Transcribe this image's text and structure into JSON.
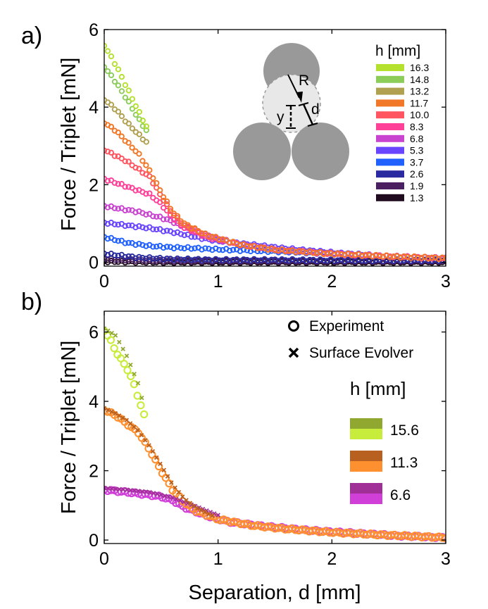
{
  "figure": {
    "xlabel": "Separation, d [mm]"
  },
  "chart_data": [
    {
      "panel_label": "a)",
      "type": "scatter",
      "xlabel": "",
      "ylabel": "Force / Triplet [mN]",
      "xlim": [
        0,
        3
      ],
      "ylim": [
        -0.1,
        6
      ],
      "xticks": [
        0,
        1,
        2,
        3
      ],
      "yticks": [
        0,
        2,
        4,
        6
      ],
      "legend_title": "h [mm]",
      "legend_position": "top-right",
      "grid": false,
      "inset": {
        "label_R": "R",
        "label_y": "y",
        "label_d": "d"
      },
      "series": [
        {
          "name": "16.3",
          "color": "#b4e02e",
          "marker": "circle",
          "x_end": 0.37,
          "points": [
            [
              0.0,
              5.6
            ],
            [
              0.1,
              5.1
            ],
            [
              0.2,
              4.5
            ],
            [
              0.3,
              3.9
            ],
            [
              0.37,
              3.5
            ],
            [
              0.5,
              2.1
            ],
            [
              0.7,
              1.2
            ],
            [
              0.9,
              0.8
            ],
            [
              1.2,
              0.5
            ],
            [
              1.5,
              0.3
            ],
            [
              2.0,
              0.2
            ],
            [
              2.5,
              0.15
            ],
            [
              3.0,
              0.1
            ]
          ]
        },
        {
          "name": "14.8",
          "color": "#8ccd5a",
          "marker": "circle",
          "x_end": 0.37,
          "points": [
            [
              0.0,
              5.05
            ],
            [
              0.1,
              4.65
            ],
            [
              0.2,
              4.2
            ],
            [
              0.3,
              3.7
            ],
            [
              0.37,
              3.4
            ],
            [
              0.5,
              2.1
            ],
            [
              0.7,
              1.2
            ],
            [
              0.9,
              0.8
            ],
            [
              1.2,
              0.5
            ],
            [
              1.5,
              0.3
            ],
            [
              2.0,
              0.2
            ],
            [
              2.5,
              0.15
            ],
            [
              3.0,
              0.1
            ]
          ]
        },
        {
          "name": "13.2",
          "color": "#b0a050",
          "marker": "circle",
          "x_end": 0.37,
          "points": [
            [
              0.0,
              4.2
            ],
            [
              0.1,
              3.95
            ],
            [
              0.2,
              3.6
            ],
            [
              0.3,
              3.3
            ],
            [
              0.37,
              3.1
            ],
            [
              0.5,
              2.2
            ],
            [
              0.7,
              1.2
            ],
            [
              0.9,
              0.8
            ],
            [
              1.2,
              0.5
            ],
            [
              1.5,
              0.3
            ],
            [
              2.0,
              0.2
            ],
            [
              2.5,
              0.15
            ],
            [
              3.0,
              0.1
            ]
          ]
        },
        {
          "name": "11.7",
          "color": "#f07828",
          "marker": "circle",
          "x_end": 3.0,
          "points": [
            [
              0.0,
              3.6
            ],
            [
              0.1,
              3.4
            ],
            [
              0.2,
              3.1
            ],
            [
              0.3,
              2.8
            ],
            [
              0.4,
              2.35
            ],
            [
              0.5,
              1.8
            ],
            [
              0.6,
              1.3
            ],
            [
              0.7,
              1.0
            ],
            [
              0.9,
              0.7
            ],
            [
              1.2,
              0.45
            ],
            [
              1.5,
              0.32
            ],
            [
              2.0,
              0.22
            ],
            [
              2.5,
              0.15
            ],
            [
              3.0,
              0.1
            ]
          ]
        },
        {
          "name": "10.0",
          "color": "#ff5560",
          "marker": "circle",
          "x_end": 3.0,
          "points": [
            [
              0.0,
              2.9
            ],
            [
              0.1,
              2.75
            ],
            [
              0.2,
              2.6
            ],
            [
              0.3,
              2.4
            ],
            [
              0.4,
              2.2
            ],
            [
              0.5,
              1.7
            ],
            [
              0.6,
              1.25
            ],
            [
              0.7,
              0.95
            ],
            [
              0.9,
              0.7
            ],
            [
              1.2,
              0.45
            ],
            [
              1.5,
              0.32
            ],
            [
              2.0,
              0.22
            ],
            [
              2.5,
              0.15
            ],
            [
              3.0,
              0.1
            ]
          ]
        },
        {
          "name": "8.3",
          "color": "#ff4098",
          "marker": "circle",
          "x_end": 3.0,
          "points": [
            [
              0.0,
              2.15
            ],
            [
              0.1,
              2.05
            ],
            [
              0.2,
              1.95
            ],
            [
              0.3,
              1.85
            ],
            [
              0.4,
              1.75
            ],
            [
              0.5,
              1.5
            ],
            [
              0.6,
              1.15
            ],
            [
              0.7,
              0.9
            ],
            [
              0.9,
              0.65
            ],
            [
              1.2,
              0.45
            ],
            [
              1.5,
              0.32
            ],
            [
              2.0,
              0.22
            ],
            [
              2.5,
              0.15
            ],
            [
              3.0,
              0.1
            ]
          ]
        },
        {
          "name": "6.8",
          "color": "#c844d0",
          "marker": "circle",
          "x_end": 3.0,
          "points": [
            [
              0.0,
              1.45
            ],
            [
              0.1,
              1.4
            ],
            [
              0.2,
              1.35
            ],
            [
              0.3,
              1.3
            ],
            [
              0.4,
              1.22
            ],
            [
              0.5,
              1.15
            ],
            [
              0.6,
              1.05
            ],
            [
              0.7,
              0.9
            ],
            [
              0.9,
              0.7
            ],
            [
              1.2,
              0.45
            ],
            [
              1.5,
              0.32
            ],
            [
              2.0,
              0.22
            ],
            [
              2.5,
              0.15
            ],
            [
              3.0,
              0.1
            ]
          ]
        },
        {
          "name": "5.3",
          "color": "#6a45ff",
          "marker": "circle",
          "x_end": 3.0,
          "points": [
            [
              0.0,
              1.02
            ],
            [
              0.2,
              0.95
            ],
            [
              0.4,
              0.88
            ],
            [
              0.6,
              0.78
            ],
            [
              0.8,
              0.65
            ],
            [
              1.0,
              0.55
            ],
            [
              1.3,
              0.45
            ],
            [
              1.6,
              0.35
            ],
            [
              2.0,
              0.25
            ],
            [
              2.5,
              0.15
            ],
            [
              3.0,
              0.1
            ]
          ]
        },
        {
          "name": "3.7",
          "color": "#2060ff",
          "marker": "circle",
          "x_end": 3.0,
          "points": [
            [
              0.0,
              0.65
            ],
            [
              0.2,
              0.5
            ],
            [
              0.4,
              0.42
            ],
            [
              0.6,
              0.38
            ],
            [
              0.8,
              0.36
            ],
            [
              1.0,
              0.33
            ],
            [
              1.3,
              0.3
            ],
            [
              1.6,
              0.27
            ],
            [
              2.0,
              0.22
            ],
            [
              2.5,
              0.15
            ],
            [
              3.0,
              0.1
            ]
          ]
        },
        {
          "name": "2.6",
          "color": "#2a2aa0",
          "marker": "circle",
          "x_end": 3.0,
          "points": [
            [
              0.0,
              0.22
            ],
            [
              0.3,
              0.12
            ],
            [
              0.6,
              0.08
            ],
            [
              1.0,
              0.06
            ],
            [
              1.5,
              0.06
            ],
            [
              2.0,
              0.05
            ],
            [
              2.5,
              0.05
            ],
            [
              3.0,
              0.05
            ]
          ]
        },
        {
          "name": "1.9",
          "color": "#4a2060",
          "marker": "circle",
          "x_end": 3.0,
          "points": [
            [
              0.0,
              0.08
            ],
            [
              0.5,
              0.04
            ],
            [
              1.0,
              0.03
            ],
            [
              1.5,
              0.03
            ],
            [
              2.0,
              0.03
            ],
            [
              2.5,
              0.03
            ],
            [
              3.0,
              0.03
            ]
          ]
        },
        {
          "name": "1.3",
          "color": "#200a20",
          "marker": "circle",
          "x_end": 3.0,
          "points": [
            [
              0.0,
              0.02
            ],
            [
              0.5,
              0.0
            ],
            [
              1.0,
              0.0
            ],
            [
              1.5,
              0.0
            ],
            [
              2.0,
              0.0
            ],
            [
              2.5,
              0.0
            ],
            [
              3.0,
              0.0
            ]
          ]
        }
      ]
    },
    {
      "panel_label": "b)",
      "type": "scatter",
      "xlabel": "Separation, d [mm]",
      "ylabel": "Force / Triplet [mN]",
      "xlim": [
        0,
        3
      ],
      "ylim": [
        -0.1,
        6.6
      ],
      "xticks": [
        0,
        1,
        2,
        3
      ],
      "yticks": [
        0,
        2,
        4,
        6
      ],
      "marker_legend": [
        {
          "label": "Experiment",
          "marker": "circle"
        },
        {
          "label": "Surface Evolver",
          "marker": "cross"
        }
      ],
      "legend_title": "h [mm]",
      "legend_position": "top-right",
      "grid": false,
      "series": [
        {
          "name": "15.6",
          "color_experiment": "#c8ec3c",
          "color_model": "#90a830",
          "experiment_end": 0.35,
          "model_end": 0.33,
          "experiment": [
            [
              0.0,
              6.05
            ],
            [
              0.05,
              5.8
            ],
            [
              0.1,
              5.45
            ],
            [
              0.15,
              5.2
            ],
            [
              0.2,
              4.95
            ],
            [
              0.25,
              4.6
            ],
            [
              0.3,
              4.1
            ],
            [
              0.35,
              3.6
            ],
            [
              0.4,
              2.9
            ],
            [
              0.5,
              2.0
            ],
            [
              0.6,
              1.35
            ],
            [
              0.7,
              1.0
            ],
            [
              0.9,
              0.7
            ],
            [
              1.2,
              0.5
            ],
            [
              1.5,
              0.35
            ],
            [
              2.0,
              0.22
            ],
            [
              2.5,
              0.15
            ],
            [
              3.0,
              0.08
            ]
          ],
          "model": [
            [
              0.0,
              6.1
            ],
            [
              0.1,
              5.9
            ],
            [
              0.15,
              5.6
            ],
            [
              0.2,
              5.3
            ],
            [
              0.25,
              4.9
            ],
            [
              0.3,
              4.5
            ],
            [
              0.33,
              4.1
            ]
          ]
        },
        {
          "name": "11.3",
          "color_experiment": "#ff9030",
          "color_model": "#b86020",
          "experiment_end": 3.0,
          "model_end": 0.95,
          "experiment": [
            [
              0.0,
              3.75
            ],
            [
              0.1,
              3.6
            ],
            [
              0.2,
              3.35
            ],
            [
              0.3,
              3.1
            ],
            [
              0.4,
              2.6
            ],
            [
              0.5,
              2.0
            ],
            [
              0.6,
              1.45
            ],
            [
              0.7,
              1.1
            ],
            [
              0.8,
              0.85
            ],
            [
              1.0,
              0.6
            ],
            [
              1.3,
              0.42
            ],
            [
              1.6,
              0.32
            ],
            [
              2.0,
              0.22
            ],
            [
              2.5,
              0.14
            ],
            [
              3.0,
              0.07
            ]
          ],
          "model": [
            [
              0.0,
              3.8
            ],
            [
              0.1,
              3.65
            ],
            [
              0.2,
              3.45
            ],
            [
              0.3,
              3.15
            ],
            [
              0.4,
              2.7
            ],
            [
              0.5,
              2.15
            ],
            [
              0.6,
              1.6
            ],
            [
              0.7,
              1.2
            ],
            [
              0.8,
              0.95
            ],
            [
              0.95,
              0.7
            ]
          ]
        },
        {
          "name": "6.6",
          "color_experiment": "#d040d8",
          "color_model": "#a03098",
          "experiment_end": 3.0,
          "model_end": 1.0,
          "experiment": [
            [
              0.0,
              1.45
            ],
            [
              0.2,
              1.38
            ],
            [
              0.4,
              1.3
            ],
            [
              0.5,
              1.25
            ],
            [
              0.6,
              1.15
            ],
            [
              0.7,
              0.95
            ],
            [
              0.9,
              0.7
            ],
            [
              1.1,
              0.52
            ],
            [
              1.4,
              0.4
            ],
            [
              1.8,
              0.28
            ],
            [
              2.2,
              0.2
            ],
            [
              2.6,
              0.12
            ],
            [
              3.0,
              0.07
            ]
          ],
          "model": [
            [
              0.0,
              1.5
            ],
            [
              0.2,
              1.45
            ],
            [
              0.4,
              1.38
            ],
            [
              0.6,
              1.22
            ],
            [
              0.8,
              0.98
            ],
            [
              1.0,
              0.72
            ]
          ]
        }
      ]
    }
  ]
}
